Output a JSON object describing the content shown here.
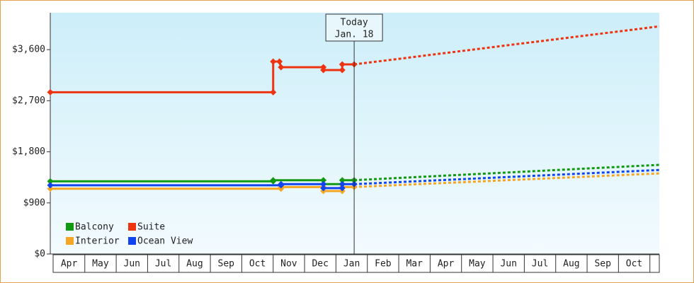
{
  "chart_data": {
    "type": "line",
    "xlim": [
      -0.1,
      19.3
    ],
    "ylim": [
      0,
      4250
    ],
    "yticks": [
      {
        "value": 0,
        "label": "$0"
      },
      {
        "value": 900,
        "label": "$900"
      },
      {
        "value": 1800,
        "label": "$1,800"
      },
      {
        "value": 2700,
        "label": "$2,700"
      },
      {
        "value": 3600,
        "label": "$3,600"
      }
    ],
    "xticks": [
      {
        "value": 0.5,
        "label": "Apr"
      },
      {
        "value": 1.5,
        "label": "May"
      },
      {
        "value": 2.5,
        "label": "Jun"
      },
      {
        "value": 3.5,
        "label": "Jul"
      },
      {
        "value": 4.5,
        "label": "Aug"
      },
      {
        "value": 5.5,
        "label": "Sep"
      },
      {
        "value": 6.5,
        "label": "Oct"
      },
      {
        "value": 7.5,
        "label": "Nov"
      },
      {
        "value": 8.5,
        "label": "Dec"
      },
      {
        "value": 9.5,
        "label": "Jan"
      },
      {
        "value": 10.5,
        "label": "Feb"
      },
      {
        "value": 11.5,
        "label": "Mar"
      },
      {
        "value": 12.5,
        "label": "Apr"
      },
      {
        "value": 13.5,
        "label": "May"
      },
      {
        "value": 14.5,
        "label": "Jun"
      },
      {
        "value": 15.5,
        "label": "Jul"
      },
      {
        "value": 16.5,
        "label": "Aug"
      },
      {
        "value": 17.5,
        "label": "Sep"
      },
      {
        "value": 18.5,
        "label": "Oct"
      }
    ],
    "annotation": {
      "x": 9.58,
      "lines": [
        "Today",
        "Jan. 18"
      ]
    },
    "series": [
      {
        "name": "Balcony",
        "color": "#119911",
        "x": [
          -0.1,
          7.0,
          7.0,
          8.6,
          8.6,
          9.2,
          9.2,
          9.58
        ],
        "values": [
          1280,
          1280,
          1300,
          1300,
          1230,
          1230,
          1300,
          1300
        ],
        "forecast_x": [
          9.58,
          19.3
        ],
        "forecast_values": [
          1300,
          1570
        ]
      },
      {
        "name": "Suite",
        "color": "#ee3311",
        "x": [
          -0.1,
          7.0,
          7.0,
          7.2,
          7.25,
          8.6,
          8.6,
          9.2,
          9.2,
          9.58
        ],
        "values": [
          2850,
          2850,
          3390,
          3390,
          3290,
          3290,
          3240,
          3240,
          3340,
          3340
        ],
        "forecast_x": [
          9.58,
          19.3
        ],
        "forecast_values": [
          3340,
          4010
        ]
      },
      {
        "name": "Interior",
        "color": "#f5a623",
        "x": [
          -0.1,
          7.25,
          7.25,
          8.6,
          8.6,
          9.2,
          9.2,
          9.58
        ],
        "values": [
          1150,
          1150,
          1180,
          1180,
          1110,
          1110,
          1180,
          1180
        ],
        "forecast_x": [
          9.58,
          19.3
        ],
        "forecast_values": [
          1180,
          1420
        ]
      },
      {
        "name": "Ocean View",
        "color": "#1144ee",
        "x": [
          -0.1,
          7.25,
          7.25,
          8.6,
          8.6,
          9.2,
          9.2,
          9.58
        ],
        "values": [
          1210,
          1210,
          1230,
          1230,
          1160,
          1160,
          1230,
          1230
        ],
        "forecast_x": [
          9.58,
          19.3
        ],
        "forecast_values": [
          1230,
          1480
        ]
      }
    ]
  }
}
